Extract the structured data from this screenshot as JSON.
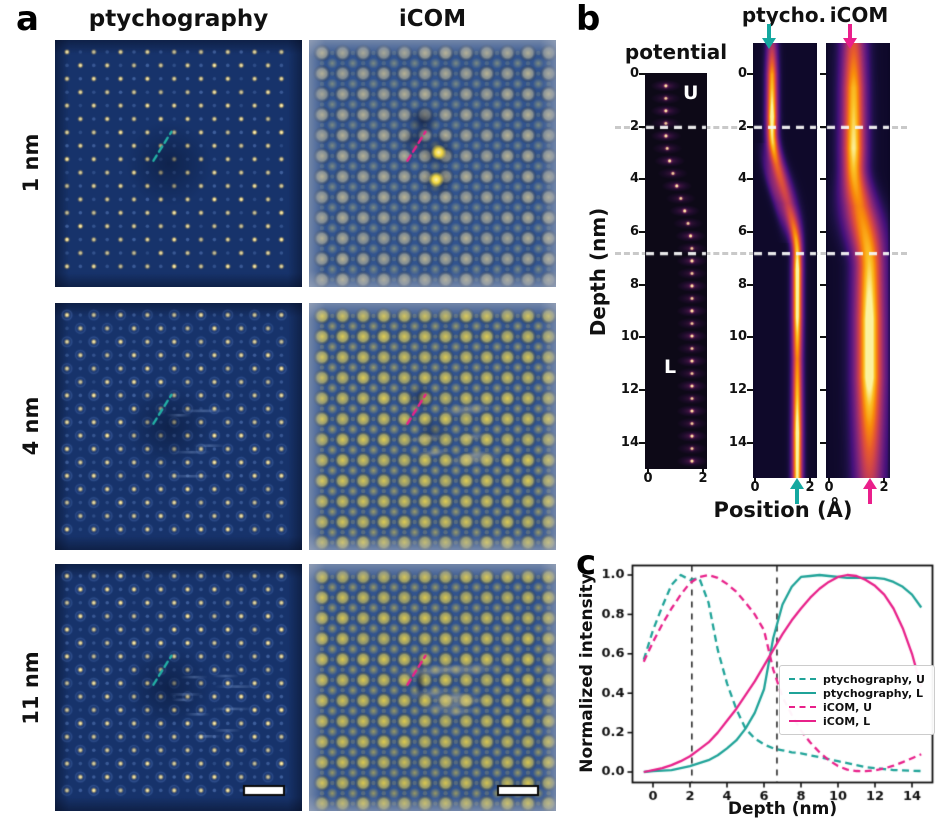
{
  "panels": {
    "a": {
      "label": "a",
      "column_headers": [
        "ptychography",
        "iCOM"
      ],
      "row_labels": [
        "1 nm",
        "4 nm",
        "11 nm"
      ],
      "ptycho_bg": "#17336b",
      "icom_bg": "#32548f",
      "dot_color": "#eeda8d",
      "marker_colors": {
        "ptycho": "#23b0a5",
        "icom": "#e8218a"
      },
      "scalebar_color": "#ffffff",
      "images": [
        {
          "id": "ptycho-1nm-image",
          "type": "ptycho",
          "seed": 7,
          "halo": false,
          "streaks": 0,
          "smudge": true,
          "scalebar": false
        },
        {
          "id": "icom-1nm-image",
          "type": "icom",
          "seed": 11,
          "big": "#bdb694",
          "small": "#8f997f",
          "defect": "pair",
          "scalebar": false
        },
        {
          "id": "ptycho-4nm-image",
          "type": "ptycho",
          "seed": 23,
          "halo": true,
          "streaks": 5,
          "smudge": true,
          "scalebar": false
        },
        {
          "id": "icom-4nm-image",
          "type": "icom",
          "seed": 31,
          "big": "#e4d052",
          "small": "#b6ad5e",
          "defect": "streaks",
          "scalebar": false
        },
        {
          "id": "ptycho-11nm-image",
          "type": "ptycho",
          "seed": 41,
          "halo": true,
          "streaks": 9,
          "smudge": true,
          "scalebar": true
        },
        {
          "id": "icom-11nm-image",
          "type": "icom",
          "seed": 53,
          "big": "#e0cc4e",
          "small": "#b3aa58",
          "defect": "wide",
          "scalebar": true
        }
      ]
    },
    "b": {
      "label": "b",
      "map_titles": {
        "potential": "potential",
        "ptycho": "ptycho.",
        "icom": "iCOM"
      },
      "ylabel": "Depth (nm)",
      "xlabel": "Position (Å)",
      "depth_ticks": [
        0,
        2,
        4,
        6,
        8,
        10,
        12,
        14
      ],
      "position_ticks": [
        0,
        2
      ],
      "region_labels": {
        "upper": "U",
        "lower": "L"
      },
      "dashed_depths": [
        2.03,
        6.82
      ],
      "arrows": {
        "ptycho_color": "#14a8a0",
        "icom_color": "#ea1f8b",
        "top_positions_A": {
          "ptycho": 0.5,
          "icom": 0.75
        },
        "bottom_positions_A": {
          "ptycho": 1.53,
          "icom": 1.5
        }
      },
      "maps": {
        "potential": {
          "bg": "#0d0917",
          "cU": 0.65,
          "cL": 1.6,
          "t0": 2.2,
          "t1": 6.8,
          "dot_start": 0.45,
          "dot_step": 0.475,
          "dot_count": 31
        },
        "ptycho": {
          "cU": 0.6,
          "cL": 1.52,
          "t0": 2.1,
          "t1": 6.9,
          "sigU": 0.155,
          "sigL": 0.145,
          "sigMid": 0.24,
          "echo": 0.3,
          "intensity": [
            [
              -1.2,
              0.5
            ],
            [
              0,
              0.85
            ],
            [
              1.6,
              1.0
            ],
            [
              2.6,
              0.92
            ],
            [
              3.4,
              0.75
            ],
            [
              4.9,
              0.6
            ],
            [
              6.2,
              0.85
            ],
            [
              7.4,
              1.0
            ],
            [
              9.2,
              0.98
            ],
            [
              10.8,
              0.8
            ],
            [
              12.2,
              0.9
            ],
            [
              13.6,
              1.0
            ],
            [
              15.4,
              0.96
            ]
          ]
        },
        "icom": {
          "cU": 0.88,
          "cL": 1.45,
          "t0": 3.4,
          "t1": 7.4,
          "sigU": 0.33,
          "sigL": 0.4,
          "sigMid": 0.47,
          "echo": 0,
          "intensity": [
            [
              -1.2,
              0.68
            ],
            [
              0.5,
              0.88
            ],
            [
              2.8,
              0.95
            ],
            [
              5,
              0.8
            ],
            [
              7,
              0.9
            ],
            [
              9.3,
              1.0
            ],
            [
              11.5,
              1.0
            ],
            [
              13,
              0.86
            ],
            [
              15.4,
              0.6
            ]
          ]
        }
      },
      "colormap": [
        [
          0,
          "#07051b"
        ],
        [
          0.12,
          "#1c1044"
        ],
        [
          0.25,
          "#43117a"
        ],
        [
          0.4,
          "#71207d"
        ],
        [
          0.53,
          "#9c2e6e"
        ],
        [
          0.65,
          "#c73e53"
        ],
        [
          0.76,
          "#e75a2e"
        ],
        [
          0.86,
          "#f98d0a"
        ],
        [
          0.94,
          "#fbc227"
        ],
        [
          1,
          "#fbf3a0"
        ]
      ]
    },
    "c": {
      "label": "c"
    }
  },
  "chart_data": {
    "type": "line",
    "title": "",
    "xlabel": "Depth (nm)",
    "ylabel": "Normalized intensity",
    "xlim": [
      -1.25,
      15.25
    ],
    "ylim": [
      -0.05,
      1.08
    ],
    "xticks": [
      0,
      2,
      4,
      6,
      8,
      10,
      12,
      14
    ],
    "yticks": [
      0.0,
      0.2,
      0.4,
      0.6,
      0.8,
      1.0
    ],
    "vlines": [
      2.1,
      6.7
    ],
    "vline_color": "#2b2b2b",
    "grid": false,
    "legend_position": "center right",
    "x": [
      -0.5,
      0,
      0.5,
      1,
      1.5,
      2,
      2.5,
      3,
      3.5,
      4,
      4.5,
      5,
      5.5,
      6,
      6.5,
      7,
      7.5,
      8,
      8.5,
      9,
      9.5,
      10,
      10.5,
      11,
      11.5,
      12,
      12.5,
      13,
      13.5,
      14,
      14.5
    ],
    "series": [
      {
        "name": "ptychography, U",
        "color": "#1fa398",
        "dash": "--",
        "values": [
          0.57,
          0.72,
          0.84,
          0.95,
          1.0,
          0.975,
          0.985,
          0.86,
          0.62,
          0.45,
          0.32,
          0.22,
          0.17,
          0.14,
          0.12,
          0.11,
          0.1,
          0.095,
          0.085,
          0.075,
          0.065,
          0.055,
          0.045,
          0.035,
          0.025,
          0.02,
          0.015,
          0.01,
          0.008,
          0.006,
          0.005
        ]
      },
      {
        "name": "ptychography, L",
        "color": "#1fa398",
        "dash": "-",
        "values": [
          0,
          0.005,
          0.007,
          0.01,
          0.02,
          0.03,
          0.045,
          0.06,
          0.085,
          0.12,
          0.16,
          0.22,
          0.3,
          0.42,
          0.68,
          0.85,
          0.94,
          0.99,
          0.995,
          1.0,
          0.995,
          0.99,
          0.985,
          0.985,
          0.985,
          0.985,
          0.98,
          0.965,
          0.94,
          0.9,
          0.835
        ]
      },
      {
        "name": "iCOM, U",
        "color": "#e8218a",
        "dash": "--",
        "values": [
          0.56,
          0.66,
          0.75,
          0.83,
          0.9,
          0.96,
          0.99,
          1.0,
          0.985,
          0.955,
          0.915,
          0.86,
          0.8,
          0.72,
          0.52,
          0.38,
          0.29,
          0.21,
          0.15,
          0.1,
          0.06,
          0.03,
          0.012,
          0.005,
          0.004,
          0.008,
          0.018,
          0.032,
          0.05,
          0.07,
          0.09
        ]
      },
      {
        "name": "iCOM, L",
        "color": "#e8218a",
        "dash": "-",
        "values": [
          0,
          0.01,
          0.02,
          0.035,
          0.055,
          0.08,
          0.115,
          0.15,
          0.2,
          0.26,
          0.32,
          0.39,
          0.46,
          0.54,
          0.62,
          0.7,
          0.77,
          0.83,
          0.885,
          0.93,
          0.965,
          0.99,
          1.0,
          0.995,
          0.975,
          0.945,
          0.9,
          0.83,
          0.73,
          0.6,
          0.43
        ]
      }
    ]
  }
}
